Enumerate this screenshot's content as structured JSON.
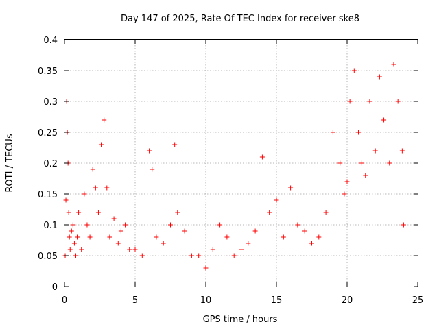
{
  "chart_data": {
    "type": "scatter",
    "title": "Day 147 of 2025, Rate Of TEC Index for receiver ske8",
    "xlabel": "GPS time / hours",
    "ylabel": "ROTI / TECUs",
    "xlim": [
      0,
      25
    ],
    "ylim": [
      0,
      0.4
    ],
    "xticks": [
      "0",
      "5",
      "10",
      "15",
      "20",
      "25"
    ],
    "yticks": [
      "0",
      "0.05",
      "0.1",
      "0.15",
      "0.2",
      "0.25",
      "0.3",
      "0.35",
      "0.4"
    ],
    "grid": true,
    "marker": "+",
    "color": "#ff0000",
    "series": [
      {
        "x": [
          0.05,
          0.1,
          0.15,
          0.2,
          0.25,
          0.3,
          0.35,
          0.4,
          0.5,
          0.6,
          0.7,
          0.8,
          0.9,
          1.0,
          1.2,
          1.4,
          1.6,
          1.8,
          2.0,
          2.2,
          2.4,
          2.6,
          2.8,
          3.0,
          3.2,
          3.5,
          3.8,
          4.0,
          4.3,
          4.6,
          5.0,
          5.5,
          6.0,
          6.2,
          6.5,
          7.0,
          7.5,
          7.8,
          8.0,
          8.5,
          9.0,
          9.5,
          10.0,
          10.5,
          11.0,
          11.5,
          12.0,
          12.5,
          13.0,
          13.5,
          14.0,
          14.5,
          15.0,
          15.5,
          16.0,
          16.5,
          17.0,
          17.5,
          18.0,
          18.5,
          19.0,
          19.5,
          19.8,
          20.0,
          20.2,
          20.5,
          20.8,
          21.0,
          21.3,
          21.6,
          22.0,
          22.3,
          22.6,
          23.0,
          23.3,
          23.6,
          23.9,
          24.0
        ],
        "y": [
          0.05,
          0.14,
          0.3,
          0.25,
          0.2,
          0.12,
          0.08,
          0.06,
          0.09,
          0.1,
          0.07,
          0.05,
          0.08,
          0.12,
          0.06,
          0.15,
          0.1,
          0.08,
          0.19,
          0.16,
          0.12,
          0.23,
          0.27,
          0.16,
          0.08,
          0.11,
          0.07,
          0.09,
          0.1,
          0.06,
          0.06,
          0.05,
          0.22,
          0.19,
          0.08,
          0.07,
          0.1,
          0.23,
          0.12,
          0.09,
          0.05,
          0.05,
          0.03,
          0.06,
          0.1,
          0.08,
          0.05,
          0.06,
          0.07,
          0.09,
          0.21,
          0.12,
          0.14,
          0.08,
          0.16,
          0.1,
          0.09,
          0.07,
          0.08,
          0.12,
          0.25,
          0.2,
          0.15,
          0.17,
          0.3,
          0.35,
          0.25,
          0.2,
          0.18,
          0.3,
          0.22,
          0.34,
          0.27,
          0.2,
          0.36,
          0.3,
          0.22,
          0.1
        ]
      }
    ]
  }
}
